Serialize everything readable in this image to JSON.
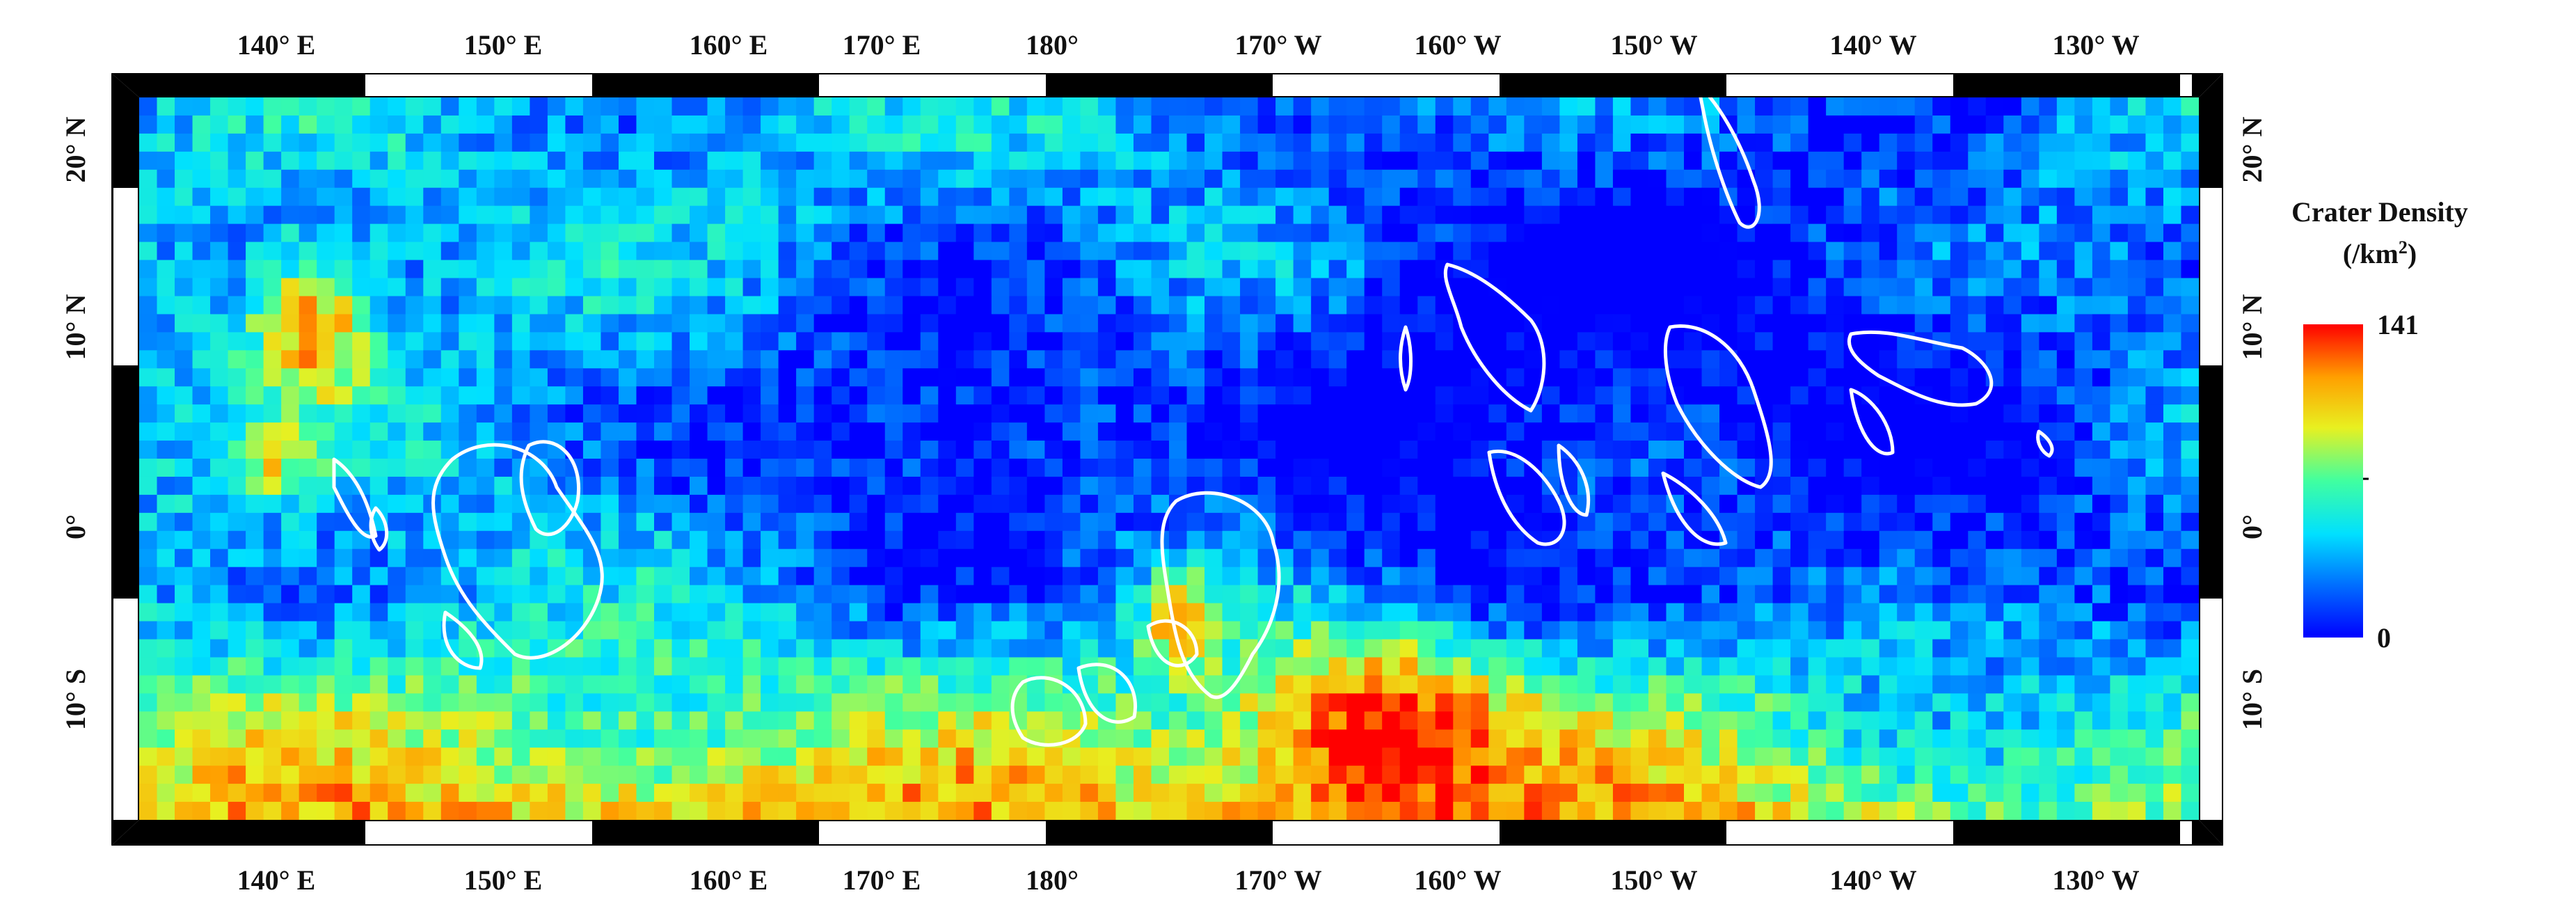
{
  "map": {
    "longitude_labels": [
      "140° E",
      "150° E",
      "160° E",
      "170° E",
      "180°",
      "170° W",
      "160° W",
      "150° W",
      "140° W",
      "130° W"
    ],
    "latitude_labels": [
      "20° N",
      "10° N",
      "0°",
      "10° S"
    ]
  },
  "legend": {
    "title_line1": "Crater Density",
    "title_line2_prefix": "(/km",
    "title_line2_sup": "2",
    "title_line2_suffix": ")",
    "max_label": "141",
    "min_label": "0",
    "colors": [
      "#0000ff",
      "#0070ff",
      "#00e0ff",
      "#40ffa0",
      "#e8f020",
      "#ffa000",
      "#ff0000"
    ]
  }
}
